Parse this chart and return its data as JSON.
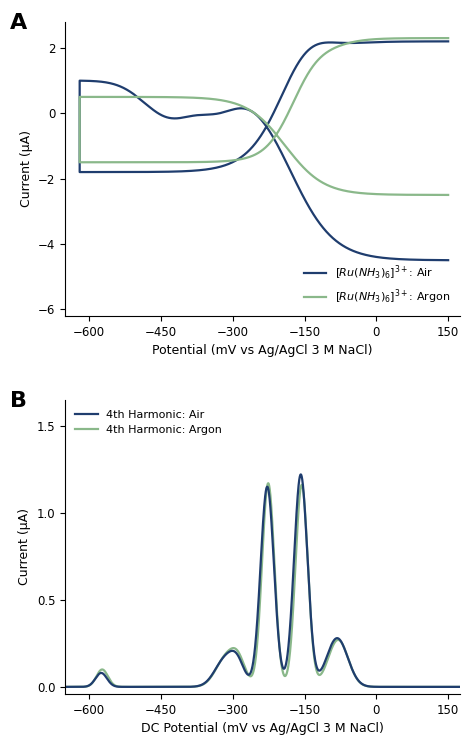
{
  "panel_A": {
    "xlabel": "Potential (mV vs Ag/AgCl 3 M NaCl)",
    "ylabel": "Current (μA)",
    "xlim": [
      -650,
      175
    ],
    "ylim": [
      -6.2,
      2.8
    ],
    "xticks": [
      -600,
      -450,
      -300,
      -150,
      0,
      150
    ],
    "yticks": [
      -6,
      -4,
      -2,
      0,
      2
    ],
    "color_air": "#1f3d6e",
    "color_argon": "#8ab88a",
    "legend_labels": [
      "$[Ru(NH_3)_6]^{3+}$: Air",
      "$[Ru(NH_3)_6]^{3+}$: Argon"
    ]
  },
  "panel_B": {
    "xlabel": "DC Potential (mV vs Ag/AgCl 3 M NaCl)",
    "ylabel": "Current (μA)",
    "xlim": [
      -650,
      175
    ],
    "ylim": [
      -0.04,
      1.65
    ],
    "xticks": [
      -600,
      -450,
      -300,
      -150,
      0,
      150
    ],
    "yticks": [
      0.0,
      0.5,
      1.0,
      1.5
    ],
    "color_air": "#1f3d6e",
    "color_argon": "#8ab88a",
    "legend_labels": [
      "4th Harmonic: Air",
      "4th Harmonic: Argon"
    ]
  }
}
